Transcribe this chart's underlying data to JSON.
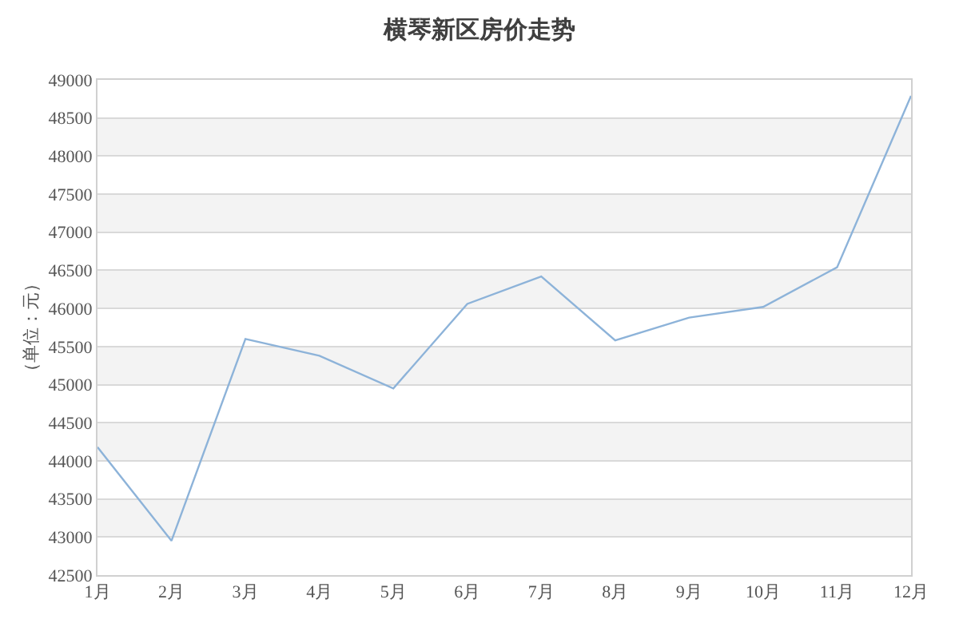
{
  "chart_data": {
    "type": "line",
    "title": "横琴新区房价走势",
    "ylabel": "（单位：元）",
    "categories": [
      "1月",
      "2月",
      "3月",
      "4月",
      "5月",
      "6月",
      "7月",
      "8月",
      "9月",
      "10月",
      "11月",
      "12月"
    ],
    "series": [
      {
        "color": "#8db3d9",
        "values": [
          44180,
          42950,
          45600,
          45380,
          44950,
          46060,
          46420,
          45580,
          45880,
          46020,
          46540,
          48790
        ]
      }
    ],
    "ylim": [
      42500,
      49000
    ],
    "yticks": [
      42500,
      43000,
      43500,
      44000,
      44500,
      45000,
      45500,
      46000,
      46500,
      47000,
      47500,
      48000,
      48500,
      49000
    ],
    "grid": "y",
    "bands": [
      {
        "axis": "y",
        "from": 43000,
        "to": 43500,
        "color": "#f3f3f3"
      },
      {
        "axis": "y",
        "from": 44000,
        "to": 44500,
        "color": "#f3f3f3"
      },
      {
        "axis": "y",
        "from": 45000,
        "to": 45500,
        "color": "#f3f3f3"
      },
      {
        "axis": "y",
        "from": 46000,
        "to": 46500,
        "color": "#f3f3f3"
      },
      {
        "axis": "y",
        "from": 47000,
        "to": 47500,
        "color": "#f3f3f3"
      },
      {
        "axis": "y",
        "from": 48000,
        "to": 48500,
        "color": "#f3f3f3"
      }
    ]
  }
}
